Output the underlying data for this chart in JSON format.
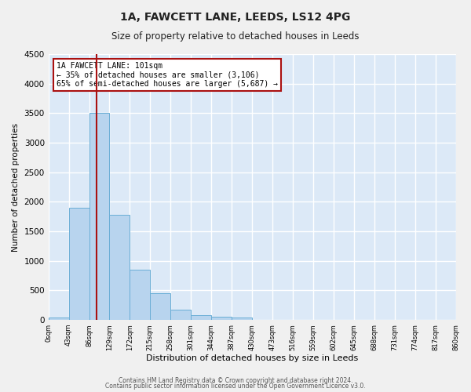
{
  "title": "1A, FAWCETT LANE, LEEDS, LS12 4PG",
  "subtitle": "Size of property relative to detached houses in Leeds",
  "xlabel": "Distribution of detached houses by size in Leeds",
  "ylabel": "Number of detached properties",
  "bar_color": "#b8d4ee",
  "bar_edge_color": "#6aaed6",
  "background_color": "#dce9f7",
  "grid_color": "#ffffff",
  "vline_x": 101,
  "vline_color": "#aa1111",
  "annotation_title": "1A FAWCETT LANE: 101sqm",
  "annotation_line1": "← 35% of detached houses are smaller (3,106)",
  "annotation_line2": "65% of semi-detached houses are larger (5,687) →",
  "annotation_box_color": "#ffffff",
  "annotation_box_edge": "#aa1111",
  "bin_edges": [
    0,
    43,
    86,
    129,
    172,
    215,
    258,
    301,
    344,
    387,
    430,
    473,
    516,
    559,
    602,
    645,
    688,
    731,
    774,
    817,
    860
  ],
  "bin_counts": [
    40,
    1900,
    3500,
    1775,
    850,
    450,
    170,
    85,
    55,
    40,
    0,
    0,
    0,
    0,
    0,
    0,
    0,
    0,
    0,
    0
  ],
  "ylim": [
    0,
    4500
  ],
  "yticks": [
    0,
    500,
    1000,
    1500,
    2000,
    2500,
    3000,
    3500,
    4000,
    4500
  ],
  "footer_line1": "Contains HM Land Registry data © Crown copyright and database right 2024.",
  "footer_line2": "Contains public sector information licensed under the Open Government Licence v3.0."
}
